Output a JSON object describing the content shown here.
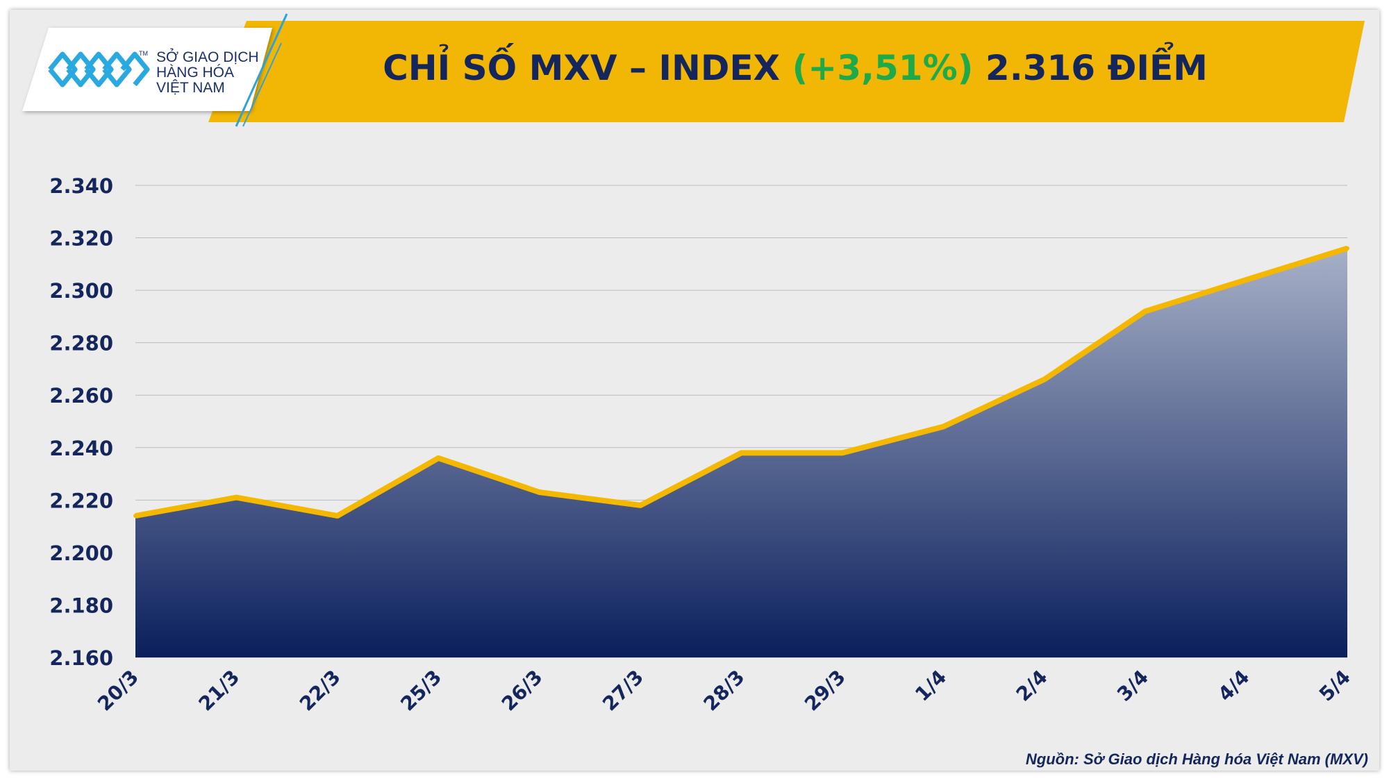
{
  "header": {
    "title_prefix": "CHỈ SỐ MXV – INDEX ",
    "title_change": "(+3,51%)",
    "title_suffix": " 2.316 ĐIỂM"
  },
  "logo": {
    "line1": "SỞ GIAO DỊCH",
    "line2": "HÀNG HÓA",
    "line3": "VIỆT NAM",
    "tm": "TM"
  },
  "source": "Nguồn: Sở Giao dịch Hàng hóa Việt Nam (MXV)",
  "colors": {
    "banner": "#f2b705",
    "line": "#f5b800",
    "area_top": "#a7b0c7",
    "area_bottom": "#0a1f5c",
    "title": "#14265c",
    "positive": "#1faa4a",
    "axis_text": "#14265c"
  },
  "chart_data": {
    "type": "area",
    "title": "CHỈ SỐ MXV – INDEX (+3,51%) 2.316 ĐIỂM",
    "categories": [
      "20/3",
      "21/3",
      "22/3",
      "25/3",
      "26/3",
      "27/3",
      "28/3",
      "29/3",
      "1/4",
      "2/4",
      "3/4",
      "4/4",
      "5/4"
    ],
    "series": [
      {
        "values": [
          2214,
          2221,
          2214,
          2236,
          2223,
          2218,
          2238,
          2238,
          2248,
          2266,
          2292,
          2304,
          2316
        ]
      }
    ],
    "y_ticks": [
      "2.160",
      "2.180",
      "2.200",
      "2.220",
      "2.240",
      "2.260",
      "2.280",
      "2.300",
      "2.320",
      "2.340"
    ],
    "ylim": [
      2160,
      2340
    ],
    "grid": true,
    "legend": "none"
  }
}
